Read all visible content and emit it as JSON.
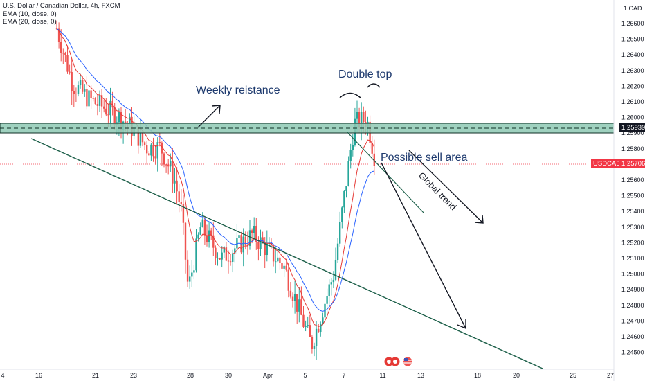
{
  "legend": {
    "symbol": "U.S. Dollar / Canadian Dollar, 4h, FXCM",
    "ema1": "EMA (10, close, 0)",
    "ema2": "EMA (20, close, 0)"
  },
  "price_axis": {
    "currency": "1 CAD",
    "ticks": [
      "1.26600",
      "1.26500",
      "1.26400",
      "1.26300",
      "1.26200",
      "1.26100",
      "1.26000",
      "1.25900",
      "1.25800",
      "1.25700",
      "1.25600",
      "1.25500",
      "1.25400",
      "1.25300",
      "1.25200",
      "1.25100",
      "1.25000",
      "1.24900",
      "1.24800",
      "1.24700",
      "1.24600",
      "1.24500"
    ]
  },
  "time_axis": {
    "ticks": [
      "4",
      "16",
      "21",
      "23",
      "28",
      "30",
      "Apr",
      "5",
      "7",
      "11",
      "13",
      "18",
      "20",
      "25",
      "27"
    ]
  },
  "tags": {
    "resistance_price": "1.25939",
    "symbol_tag": "USDCAD",
    "current_price": "1.25706"
  },
  "annotations": {
    "weekly_resistance": "Weekly reistance",
    "double_top": "Double top",
    "possible_sell": "Possible sell area",
    "global_trend": "Global trend"
  },
  "colors": {
    "up": "#26a69a",
    "down": "#ef5350",
    "ema_fast": "#e53935",
    "ema_slow": "#2962ff",
    "zone_fill": "#8ec9b4",
    "trendline": "#1b5e48",
    "annotation_text": "#1e3a6e",
    "price_tag": "#f23645",
    "resistance_tag": "#131722"
  },
  "chart_data": {
    "type": "candlestick",
    "symbol": "USDCAD",
    "timeframe": "4h",
    "y_range": [
      1.244,
      1.2673
    ],
    "resistance_zone": [
      1.2591,
      1.2597
    ],
    "current_price": 1.25706,
    "close_path": [
      {
        "x": "Mar 16",
        "close": 1.2655
      },
      {
        "x": "Mar 17",
        "close": 1.262
      },
      {
        "x": "Mar 18",
        "close": 1.261
      },
      {
        "x": "Mar 19",
        "close": 1.2604
      },
      {
        "x": "Mar 21",
        "close": 1.2595
      },
      {
        "x": "Mar 22",
        "close": 1.258
      },
      {
        "x": "Mar 23",
        "close": 1.258
      },
      {
        "x": "Mar 24",
        "close": 1.256
      },
      {
        "x": "Mar 25",
        "close": 1.254
      },
      {
        "x": "Mar 28",
        "close": 1.249
      },
      {
        "x": "Mar 29",
        "close": 1.253
      },
      {
        "x": "Mar 30",
        "close": 1.251
      },
      {
        "x": "Apr 1",
        "close": 1.2525
      },
      {
        "x": "Apr 4",
        "close": 1.2505
      },
      {
        "x": "Apr 5",
        "close": 1.2455
      },
      {
        "x": "Apr 6",
        "close": 1.25
      },
      {
        "x": "Apr 7",
        "close": 1.2595
      },
      {
        "x": "Apr 8",
        "close": 1.2598
      },
      {
        "x": "Apr 11",
        "close": 1.25706
      }
    ]
  }
}
